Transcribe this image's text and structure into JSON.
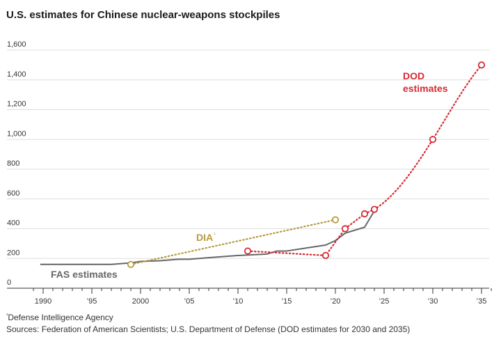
{
  "title": "U.S. estimates for Chinese nuclear-weapons stockpiles",
  "footnotes": {
    "dia_marker": "¹",
    "dia_note": "Defense Intelligence Agency",
    "sources": "Sources: Federation of American Scientists; U.S. Department of Defense (DOD estimates for 2030 and 2035)"
  },
  "colors": {
    "fas": "#666666",
    "dia": "#b59a3d",
    "dod": "#d62a32",
    "grid": "#dddddd",
    "axis": "#333333"
  },
  "chart_data": {
    "type": "line",
    "title": "U.S. estimates for Chinese nuclear-weapons stockpiles",
    "xlim": [
      1989,
      2036
    ],
    "ylim": [
      0,
      1600
    ],
    "yticks": [
      0,
      200,
      400,
      600,
      800,
      1000,
      1200,
      1400,
      1600
    ],
    "ytick_labels": [
      "0",
      "200",
      "400",
      "600",
      "800",
      "1,000",
      "1,200",
      "1,400",
      "1,600"
    ],
    "xticks": [
      1990,
      1995,
      2000,
      2005,
      2010,
      2015,
      2020,
      2025,
      2030,
      2035
    ],
    "xtick_labels": [
      "1990",
      "’95",
      "2000",
      "’05",
      "’10",
      "’15",
      "’20",
      "’25",
      "’30",
      "’35"
    ],
    "grid": true,
    "series": [
      {
        "name": "FAS estimates",
        "style": "solid",
        "x": [
          1989.7,
          1997,
          1999,
          2000,
          2002,
          2004,
          2005,
          2007,
          2009,
          2010,
          2013,
          2014,
          2015,
          2017,
          2019,
          2020,
          2021,
          2023,
          2024
        ],
        "y": [
          160,
          160,
          170,
          180,
          185,
          195,
          195,
          205,
          215,
          220,
          230,
          250,
          250,
          270,
          290,
          320,
          370,
          410,
          520
        ]
      },
      {
        "name": "DIA",
        "footnote_mark": "¹",
        "style": "dotted",
        "x": [
          1999,
          2020
        ],
        "y": [
          160,
          460
        ]
      },
      {
        "name": "DOD estimates",
        "style": "dotted",
        "x": [
          2011,
          2019,
          2021,
          2023,
          2024,
          2030,
          2035
        ],
        "y": [
          250,
          220,
          400,
          500,
          530,
          1000,
          1500
        ]
      }
    ],
    "series_labels": [
      {
        "text": "FAS estimates"
      },
      {
        "text": "DIA"
      },
      {
        "line1": "DOD",
        "line2": "estimates"
      }
    ]
  }
}
